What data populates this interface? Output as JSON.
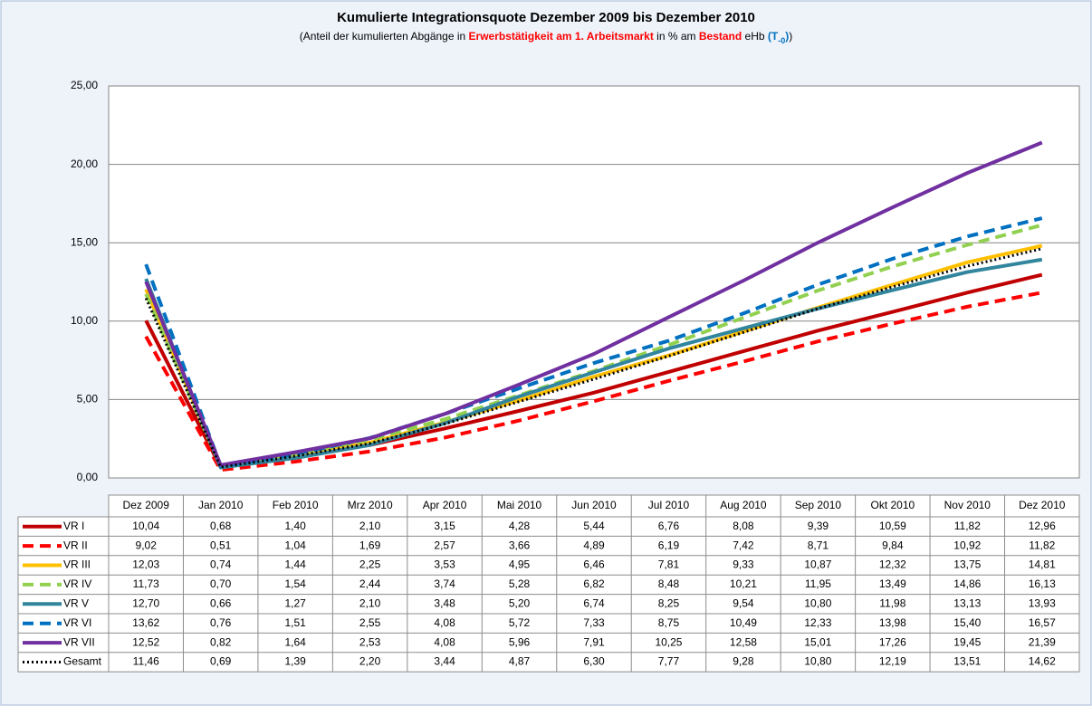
{
  "chart_data": {
    "type": "line",
    "title": "Kumulierte Integrationsquote Dezember 2009 bis Dezember 2010",
    "subtitle_parts": [
      {
        "text": "(Anteil der kumulierten Abgänge in ",
        "color": "#000000"
      },
      {
        "text": "Erwerbstätigkeit am 1. Arbeitsmarkt",
        "color": "#ff0000"
      },
      {
        "text": " in % am ",
        "color": "#000000"
      },
      {
        "text": "Bestand",
        "color": "#ff0000"
      },
      {
        "text": " eHb ",
        "color": "#000000"
      },
      {
        "text": "(T",
        "color": "#0070c0"
      },
      {
        "text": "-0",
        "color": "#0070c0",
        "sub": true
      },
      {
        "text": ")",
        "color": "#0070c0"
      },
      {
        "text": ")",
        "color": "#000000"
      }
    ],
    "categories": [
      "Dez 2009",
      "Jan 2010",
      "Feb 2010",
      "Mrz 2010",
      "Apr 2010",
      "Mai 2010",
      "Jun 2010",
      "Jul 2010",
      "Aug 2010",
      "Sep 2010",
      "Okt 2010",
      "Nov 2010",
      "Dez 2010"
    ],
    "ylim": [
      0,
      25
    ],
    "yticks": [
      {
        "value": 0,
        "label": "0,00"
      },
      {
        "value": 5,
        "label": "5,00"
      },
      {
        "value": 10,
        "label": "10,00"
      },
      {
        "value": 15,
        "label": "15,00"
      },
      {
        "value": 20,
        "label": "20,00"
      },
      {
        "value": 25,
        "label": "25,00"
      }
    ],
    "grid": true,
    "series": [
      {
        "name": "VR I",
        "color": "#c00000",
        "dash": "solid",
        "values": [
          10.04,
          0.68,
          1.4,
          2.1,
          3.15,
          4.28,
          5.44,
          6.76,
          8.08,
          9.39,
          10.59,
          11.82,
          12.96
        ],
        "value_labels": [
          "10,04",
          "0,68",
          "1,40",
          "2,10",
          "3,15",
          "4,28",
          "5,44",
          "6,76",
          "8,08",
          "9,39",
          "10,59",
          "11,82",
          "12,96"
        ]
      },
      {
        "name": "VR II",
        "color": "#ff0000",
        "dash": "dashed",
        "values": [
          9.02,
          0.51,
          1.04,
          1.69,
          2.57,
          3.66,
          4.89,
          6.19,
          7.42,
          8.71,
          9.84,
          10.92,
          11.82
        ],
        "value_labels": [
          "9,02",
          "0,51",
          "1,04",
          "1,69",
          "2,57",
          "3,66",
          "4,89",
          "6,19",
          "7,42",
          "8,71",
          "9,84",
          "10,92",
          "11,82"
        ]
      },
      {
        "name": "VR III",
        "color": "#ffc000",
        "dash": "solid",
        "values": [
          12.03,
          0.74,
          1.44,
          2.25,
          3.53,
          4.95,
          6.46,
          7.81,
          9.33,
          10.87,
          12.32,
          13.75,
          14.81
        ],
        "value_labels": [
          "12,03",
          "0,74",
          "1,44",
          "2,25",
          "3,53",
          "4,95",
          "6,46",
          "7,81",
          "9,33",
          "10,87",
          "12,32",
          "13,75",
          "14,81"
        ]
      },
      {
        "name": "VR IV",
        "color": "#92d050",
        "dash": "dashed",
        "values": [
          11.73,
          0.7,
          1.54,
          2.44,
          3.74,
          5.28,
          6.82,
          8.48,
          10.21,
          11.95,
          13.49,
          14.86,
          16.13
        ],
        "value_labels": [
          "11,73",
          "0,70",
          "1,54",
          "2,44",
          "3,74",
          "5,28",
          "6,82",
          "8,48",
          "10,21",
          "11,95",
          "13,49",
          "14,86",
          "16,13"
        ]
      },
      {
        "name": "VR V",
        "color": "#31859c",
        "dash": "solid",
        "values": [
          12.7,
          0.66,
          1.27,
          2.1,
          3.48,
          5.2,
          6.74,
          8.25,
          9.54,
          10.8,
          11.98,
          13.13,
          13.93
        ],
        "value_labels": [
          "12,70",
          "0,66",
          "1,27",
          "2,10",
          "3,48",
          "5,20",
          "6,74",
          "8,25",
          "9,54",
          "10,80",
          "11,98",
          "13,13",
          "13,93"
        ]
      },
      {
        "name": "VR VI",
        "color": "#0070c0",
        "dash": "dashed",
        "values": [
          13.62,
          0.76,
          1.51,
          2.55,
          4.08,
          5.72,
          7.33,
          8.75,
          10.49,
          12.33,
          13.98,
          15.4,
          16.57
        ],
        "value_labels": [
          "13,62",
          "0,76",
          "1,51",
          "2,55",
          "4,08",
          "5,72",
          "7,33",
          "8,75",
          "10,49",
          "12,33",
          "13,98",
          "15,40",
          "16,57"
        ]
      },
      {
        "name": "VR VII",
        "color": "#7030a0",
        "dash": "solid",
        "values": [
          12.52,
          0.82,
          1.64,
          2.53,
          4.08,
          5.96,
          7.91,
          10.25,
          12.58,
          15.01,
          17.26,
          19.45,
          21.39
        ],
        "value_labels": [
          "12,52",
          "0,82",
          "1,64",
          "2,53",
          "4,08",
          "5,96",
          "7,91",
          "10,25",
          "12,58",
          "15,01",
          "17,26",
          "19,45",
          "21,39"
        ]
      },
      {
        "name": "Gesamt",
        "color": "#000000",
        "dash": "dotted",
        "values": [
          11.46,
          0.69,
          1.39,
          2.2,
          3.44,
          4.87,
          6.3,
          7.77,
          9.28,
          10.8,
          12.19,
          13.51,
          14.62
        ],
        "value_labels": [
          "11,46",
          "0,69",
          "1,39",
          "2,20",
          "3,44",
          "4,87",
          "6,30",
          "7,77",
          "9,28",
          "10,80",
          "12,19",
          "13,51",
          "14,62"
        ]
      }
    ]
  }
}
